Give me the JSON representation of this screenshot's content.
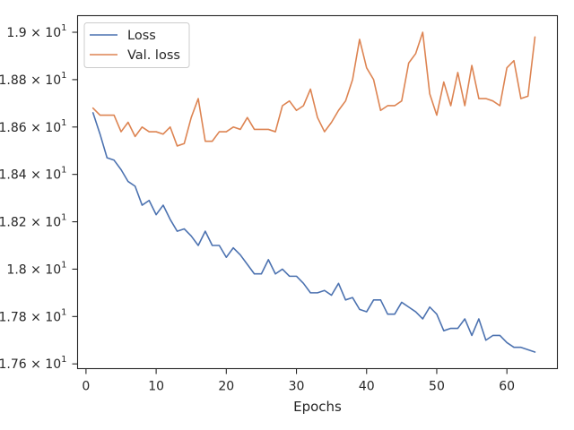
{
  "chart_data": {
    "type": "line",
    "title": "",
    "xlabel": "Epochs",
    "ylabel": "",
    "xlim": [
      -1.2,
      67.2
    ],
    "ylim": [
      17.58,
      19.07
    ],
    "grid": false,
    "legend_position": "top-left",
    "x_ticks": [
      {
        "value": 0,
        "label": "0"
      },
      {
        "value": 10,
        "label": "10"
      },
      {
        "value": 20,
        "label": "20"
      },
      {
        "value": 30,
        "label": "30"
      },
      {
        "value": 40,
        "label": "40"
      },
      {
        "value": 50,
        "label": "50"
      },
      {
        "value": 60,
        "label": "60"
      }
    ],
    "y_ticks": [
      {
        "value": 17.6,
        "mantissa": "1.76",
        "exponent": "1"
      },
      {
        "value": 17.8,
        "mantissa": "1.78",
        "exponent": "1"
      },
      {
        "value": 18.0,
        "mantissa": "1.8",
        "exponent": "1"
      },
      {
        "value": 18.2,
        "mantissa": "1.82",
        "exponent": "1"
      },
      {
        "value": 18.4,
        "mantissa": "1.84",
        "exponent": "1"
      },
      {
        "value": 18.6,
        "mantissa": "1.86",
        "exponent": "1"
      },
      {
        "value": 18.8,
        "mantissa": "1.88",
        "exponent": "1"
      },
      {
        "value": 19.0,
        "mantissa": "1.9",
        "exponent": "1"
      }
    ],
    "x": [
      1,
      2,
      3,
      4,
      5,
      6,
      7,
      8,
      9,
      10,
      11,
      12,
      13,
      14,
      15,
      16,
      17,
      18,
      19,
      20,
      21,
      22,
      23,
      24,
      25,
      26,
      27,
      28,
      29,
      30,
      31,
      32,
      33,
      34,
      35,
      36,
      37,
      38,
      39,
      40,
      41,
      42,
      43,
      44,
      45,
      46,
      47,
      48,
      49,
      50,
      51,
      52,
      53,
      54,
      55,
      56,
      57,
      58,
      59,
      60,
      61,
      62,
      63,
      64
    ],
    "series": [
      {
        "name": "Loss",
        "color": "#4c72b0",
        "values": [
          18.66,
          18.57,
          18.47,
          18.46,
          18.42,
          18.37,
          18.35,
          18.27,
          18.29,
          18.23,
          18.27,
          18.21,
          18.16,
          18.17,
          18.14,
          18.1,
          18.16,
          18.1,
          18.1,
          18.05,
          18.09,
          18.06,
          18.02,
          17.98,
          17.98,
          18.04,
          17.98,
          18.0,
          17.97,
          17.97,
          17.94,
          17.9,
          17.9,
          17.91,
          17.89,
          17.94,
          17.87,
          17.88,
          17.83,
          17.82,
          17.87,
          17.87,
          17.81,
          17.81,
          17.86,
          17.84,
          17.82,
          17.79,
          17.84,
          17.81,
          17.74,
          17.75,
          17.75,
          17.79,
          17.72,
          17.79,
          17.7,
          17.72,
          17.72,
          17.69,
          17.67,
          17.67,
          17.66,
          17.65
        ]
      },
      {
        "name": "Val. loss",
        "color": "#dd8452",
        "values": [
          18.68,
          18.65,
          18.65,
          18.65,
          18.58,
          18.62,
          18.56,
          18.6,
          18.58,
          18.58,
          18.57,
          18.6,
          18.52,
          18.53,
          18.64,
          18.72,
          18.54,
          18.54,
          18.58,
          18.58,
          18.6,
          18.59,
          18.64,
          18.59,
          18.59,
          18.59,
          18.58,
          18.69,
          18.71,
          18.67,
          18.69,
          18.76,
          18.64,
          18.58,
          18.62,
          18.67,
          18.71,
          18.8,
          18.97,
          18.85,
          18.8,
          18.67,
          18.69,
          18.69,
          18.71,
          18.87,
          18.91,
          19.0,
          18.74,
          18.65,
          18.79,
          18.69,
          18.83,
          18.69,
          18.86,
          18.72,
          18.72,
          18.71,
          18.69,
          18.85,
          18.88,
          18.72,
          18.73,
          18.98
        ]
      }
    ]
  }
}
